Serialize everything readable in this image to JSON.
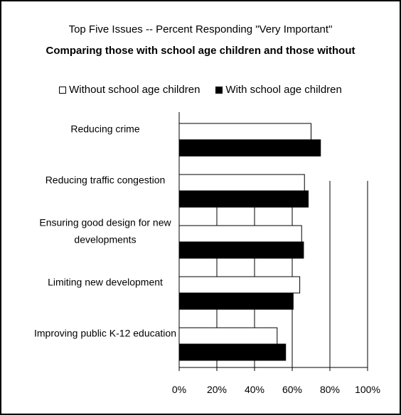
{
  "chart_data": {
    "type": "bar",
    "orientation": "horizontal",
    "title": "Top Five Issues -- Percent Responding \"Very Important\"",
    "subtitle": "Comparing those with school age children and those without",
    "categories": [
      [
        "Reducing crime"
      ],
      [
        "Reducing traffic congestion"
      ],
      [
        "Ensuring good design for new",
        "developments"
      ],
      [
        "Limiting new development"
      ],
      [
        "Improving public K-12 education"
      ]
    ],
    "series": [
      {
        "name": "Without school age children",
        "color": "#ffffff",
        "values": [
          70,
          66.5,
          65,
          64,
          52
        ]
      },
      {
        "name": "With school age children",
        "color": "#000000",
        "values": [
          75,
          68.5,
          66,
          60.5,
          56.5
        ]
      }
    ],
    "xlim": [
      0,
      100
    ],
    "x_ticks": [
      "0%",
      "20%",
      "40%",
      "60%",
      "80%",
      "100%"
    ],
    "x_tick_values": [
      0,
      20,
      40,
      60,
      80,
      100
    ],
    "grid": "vertical",
    "legend_position": "top"
  }
}
